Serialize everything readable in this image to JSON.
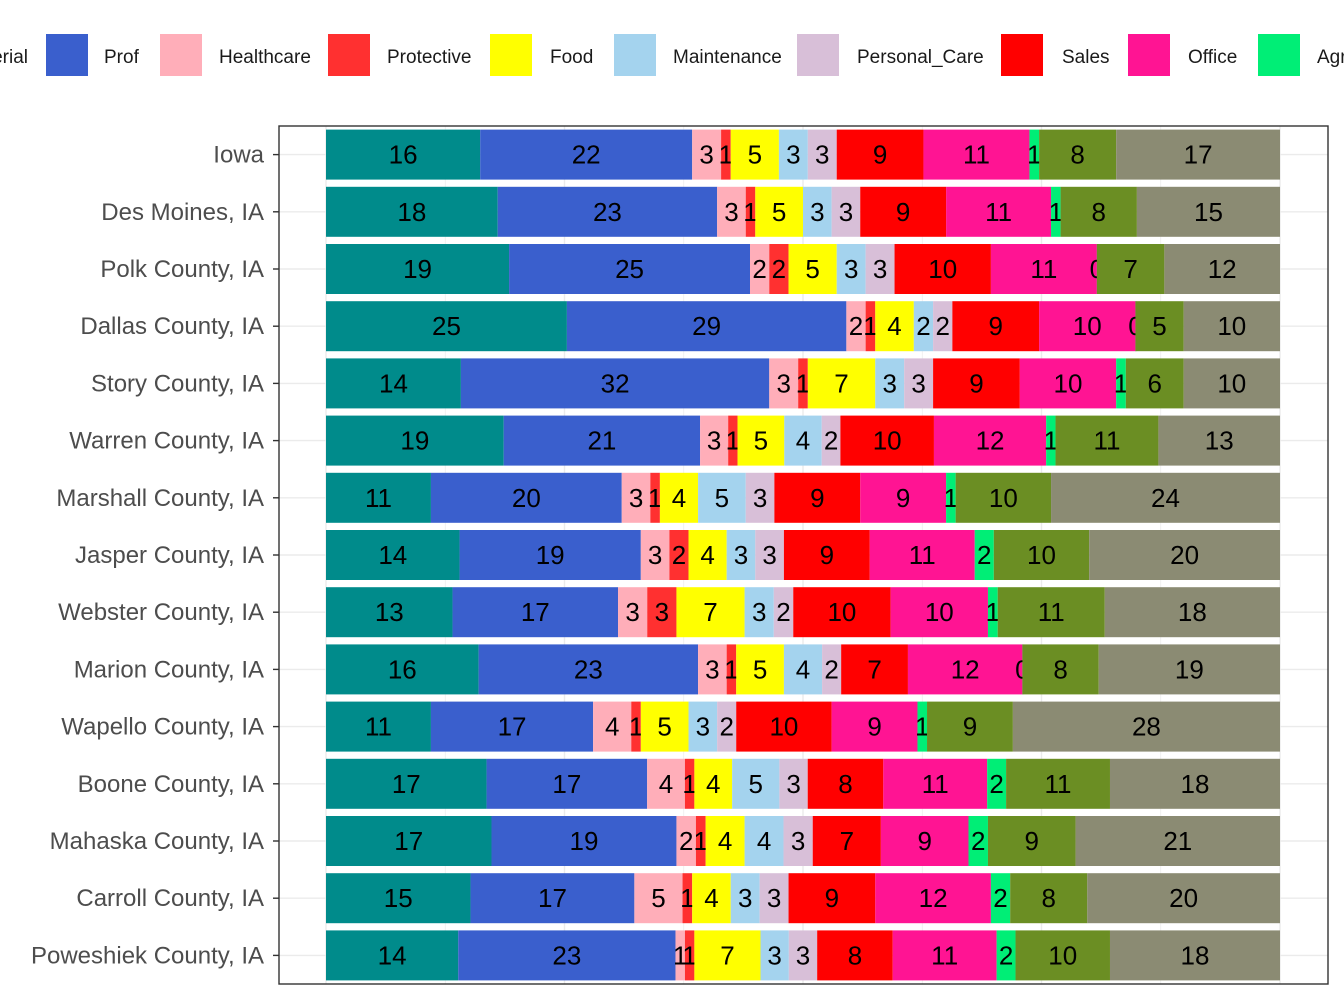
{
  "chart_data": {
    "type": "bar",
    "orientation": "horizontal",
    "stacked": true,
    "percent_scale": true,
    "legend_position": "top",
    "grid": true,
    "title": "",
    "xlabel": "",
    "ylabel": "",
    "categories": [
      "Iowa",
      "Des Moines, IA",
      "Polk County, IA",
      "Dallas County, IA",
      "Story County, IA",
      "Warren County, IA",
      "Marshall County, IA",
      "Jasper County, IA",
      "Webster County, IA",
      "Marion County, IA",
      "Wapello County, IA",
      "Boone County, IA",
      "Mahaska County, IA",
      "Carroll County, IA",
      "Poweshiek County, IA"
    ],
    "legend_partial_first": "erial",
    "legend_partial_last": "Agr",
    "series": [
      {
        "name": "",
        "color": "#008B8B",
        "values": [
          16,
          18,
          19,
          25,
          14,
          19,
          11,
          14,
          13,
          16,
          11,
          17,
          17,
          15,
          14
        ]
      },
      {
        "name": "Prof",
        "color": "#3A5FCD",
        "values": [
          22,
          23,
          25,
          29,
          32,
          21,
          20,
          19,
          17,
          23,
          17,
          17,
          19,
          17,
          23
        ]
      },
      {
        "name": "Healthcare",
        "color": "#FFAEB9",
        "values": [
          3,
          3,
          2,
          2,
          3,
          3,
          3,
          3,
          3,
          3,
          4,
          4,
          2,
          5,
          1
        ]
      },
      {
        "name": "Protective",
        "color": "#FF3030",
        "values": [
          1,
          1,
          2,
          1,
          1,
          1,
          1,
          2,
          3,
          1,
          1,
          1,
          1,
          1,
          1
        ]
      },
      {
        "name": "Food",
        "color": "#FFFF00",
        "values": [
          5,
          5,
          5,
          4,
          7,
          5,
          4,
          4,
          7,
          5,
          5,
          4,
          4,
          4,
          7
        ]
      },
      {
        "name": "Maintenance",
        "color": "#A4D3EE",
        "values": [
          3,
          3,
          3,
          2,
          3,
          4,
          5,
          3,
          3,
          4,
          3,
          5,
          4,
          3,
          3
        ]
      },
      {
        "name": "Personal_Care",
        "color": "#D8BFD8",
        "values": [
          3,
          3,
          3,
          2,
          3,
          2,
          3,
          3,
          2,
          2,
          2,
          3,
          3,
          3,
          3
        ]
      },
      {
        "name": "Sales",
        "color": "#FF0000",
        "values": [
          9,
          9,
          10,
          9,
          9,
          10,
          9,
          9,
          10,
          7,
          10,
          8,
          7,
          9,
          8
        ]
      },
      {
        "name": "Office",
        "color": "#FF1493",
        "values": [
          11,
          11,
          11,
          10,
          10,
          12,
          9,
          11,
          10,
          12,
          9,
          11,
          9,
          12,
          11
        ]
      },
      {
        "name": "",
        "color": "#00EE76",
        "values": [
          1,
          1,
          0,
          0,
          1,
          1,
          1,
          2,
          1,
          0,
          1,
          2,
          2,
          2,
          2
        ]
      },
      {
        "name": "",
        "color": "#6B8E23",
        "values": [
          8,
          8,
          7,
          5,
          6,
          11,
          10,
          10,
          11,
          8,
          9,
          11,
          9,
          8,
          10
        ]
      },
      {
        "name": "",
        "color": "#8B8B73",
        "values": [
          17,
          15,
          12,
          10,
          10,
          13,
          24,
          20,
          18,
          19,
          28,
          18,
          21,
          20,
          18
        ]
      }
    ]
  }
}
